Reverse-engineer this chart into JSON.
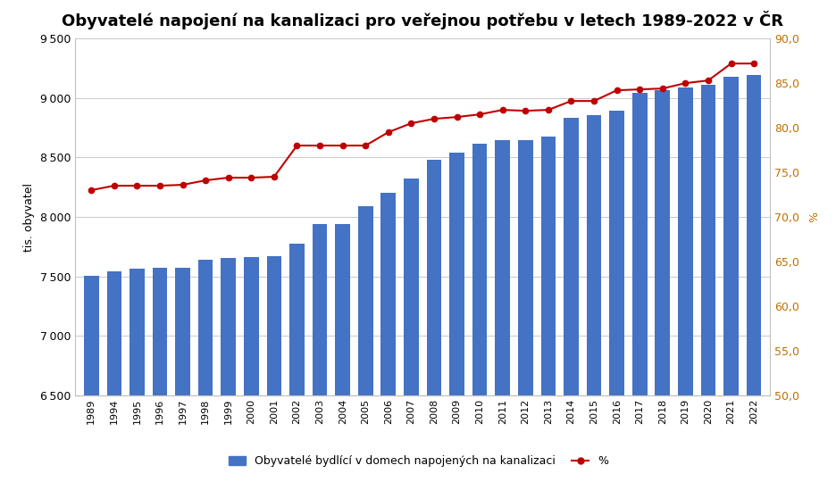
{
  "title": "Obyvatelé napojení na kanalizaci pro veřejnou potřebu v letech 1989-2022 v ČR",
  "years": [
    1989,
    1994,
    1995,
    1996,
    1997,
    1998,
    1999,
    2000,
    2001,
    2002,
    2003,
    2004,
    2005,
    2006,
    2007,
    2008,
    2009,
    2010,
    2011,
    2012,
    2013,
    2014,
    2015,
    2016,
    2017,
    2018,
    2019,
    2020,
    2021,
    2022
  ],
  "bar_values": [
    7504,
    7539,
    7566,
    7570,
    7575,
    7636,
    7658,
    7665,
    7668,
    7778,
    7942,
    7942,
    8090,
    8203,
    8320,
    8484,
    8537,
    8612,
    8649,
    8649,
    8672,
    8830,
    8855,
    8890,
    9045,
    9065,
    9090,
    9110,
    9175,
    9195
  ],
  "pct_values": [
    73.0,
    73.5,
    73.5,
    73.5,
    73.6,
    74.1,
    74.4,
    74.4,
    74.5,
    78.0,
    78.0,
    78.0,
    78.0,
    79.5,
    80.5,
    81.0,
    81.2,
    81.5,
    82.0,
    81.9,
    82.0,
    83.0,
    83.0,
    84.2,
    84.3,
    84.4,
    85.0,
    85.3,
    87.2,
    87.2
  ],
  "bar_color": "#4472C4",
  "line_color": "#C00000",
  "bar_label": "Obyvatelé bydlící v domech napojených na kanalizaci",
  "line_label": "%",
  "ylabel_left": "tis. obyvatel",
  "ylim_left": [
    6500,
    9500
  ],
  "ylim_right": [
    50.0,
    90.0
  ],
  "yticks_left": [
    6500,
    7000,
    7500,
    8000,
    8500,
    9000,
    9500
  ],
  "yticks_right": [
    50.0,
    55.0,
    60.0,
    65.0,
    70.0,
    75.0,
    80.0,
    85.0,
    90.0
  ],
  "background_color": "#FFFFFF",
  "grid_color": "#C0C0C0",
  "title_fontsize": 13
}
